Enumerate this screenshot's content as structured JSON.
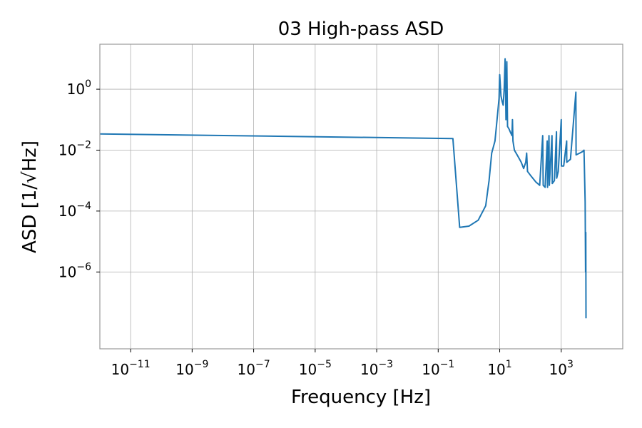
{
  "chart_data": {
    "type": "line",
    "title": "03 High-pass ASD",
    "xlabel": "Frequency [Hz]",
    "ylabel": "ASD [1/√Hz]",
    "xscale": "log",
    "yscale": "log",
    "xlim": [
      1e-12,
      100000.0
    ],
    "ylim": [
      3e-09,
      30
    ],
    "grid": true,
    "x_ticks": [
      {
        "value": 1e-11,
        "base": "10",
        "exp": "−11"
      },
      {
        "value": 1e-09,
        "base": "10",
        "exp": "−9"
      },
      {
        "value": 1e-07,
        "base": "10",
        "exp": "−7"
      },
      {
        "value": 1e-05,
        "base": "10",
        "exp": "−5"
      },
      {
        "value": 0.001,
        "base": "10",
        "exp": "−3"
      },
      {
        "value": 0.1,
        "base": "10",
        "exp": "−1"
      },
      {
        "value": 10,
        "base": "10",
        "exp": "1"
      },
      {
        "value": 1000,
        "base": "10",
        "exp": "3"
      }
    ],
    "y_ticks": [
      {
        "value": 1,
        "base": "10",
        "exp": "0"
      },
      {
        "value": 0.01,
        "base": "10",
        "exp": "−2"
      },
      {
        "value": 0.0001,
        "base": "10",
        "exp": "−4"
      },
      {
        "value": 1e-06,
        "base": "10",
        "exp": "−6"
      }
    ],
    "series": [
      {
        "color": "#1f77b4",
        "points": [
          [
            1e-12,
            0.034
          ],
          [
            0.3,
            0.024
          ],
          [
            0.5,
            2.9e-05
          ],
          [
            1.0,
            3.2e-05
          ],
          [
            2.0,
            5e-05
          ],
          [
            3.5,
            0.00015
          ],
          [
            4.5,
            0.001
          ],
          [
            5.5,
            0.008
          ],
          [
            7,
            0.02
          ],
          [
            8.5,
            0.15
          ],
          [
            9.5,
            0.5
          ],
          [
            10,
            3.0
          ],
          [
            11,
            0.6
          ],
          [
            12,
            0.4
          ],
          [
            13,
            0.3
          ],
          [
            14,
            1.0
          ],
          [
            15,
            10.0
          ],
          [
            16,
            0.1
          ],
          [
            17,
            8.0
          ],
          [
            18,
            0.06
          ],
          [
            20,
            0.05
          ],
          [
            22,
            0.04
          ],
          [
            25,
            0.03
          ],
          [
            26,
            0.1
          ],
          [
            27,
            0.02
          ],
          [
            30,
            0.01
          ],
          [
            40,
            0.006
          ],
          [
            50,
            0.004
          ],
          [
            60,
            0.0025
          ],
          [
            70,
            0.004
          ],
          [
            75,
            0.008
          ],
          [
            80,
            0.002
          ],
          [
            100,
            0.0015
          ],
          [
            150,
            0.0009
          ],
          [
            200,
            0.0007
          ],
          [
            250,
            0.03
          ],
          [
            260,
            0.0007
          ],
          [
            300,
            0.0006
          ],
          [
            350,
            0.02
          ],
          [
            360,
            0.0006
          ],
          [
            400,
            0.03
          ],
          [
            410,
            0.0007
          ],
          [
            500,
            0.03
          ],
          [
            510,
            0.0008
          ],
          [
            600,
            0.001
          ],
          [
            700,
            0.04
          ],
          [
            710,
            0.0012
          ],
          [
            800,
            0.002
          ],
          [
            1000,
            0.1
          ],
          [
            1010,
            0.003
          ],
          [
            1200,
            0.003
          ],
          [
            1500,
            0.02
          ],
          [
            1510,
            0.004
          ],
          [
            2000,
            0.005
          ],
          [
            3000,
            0.8
          ],
          [
            3050,
            0.007
          ],
          [
            4000,
            0.008
          ],
          [
            5000,
            0.009
          ],
          [
            5500,
            0.01
          ],
          [
            6000,
            0.0002
          ],
          [
            6200,
            1e-06
          ],
          [
            6300,
            2e-05
          ],
          [
            6400,
            3e-08
          ]
        ]
      }
    ]
  }
}
